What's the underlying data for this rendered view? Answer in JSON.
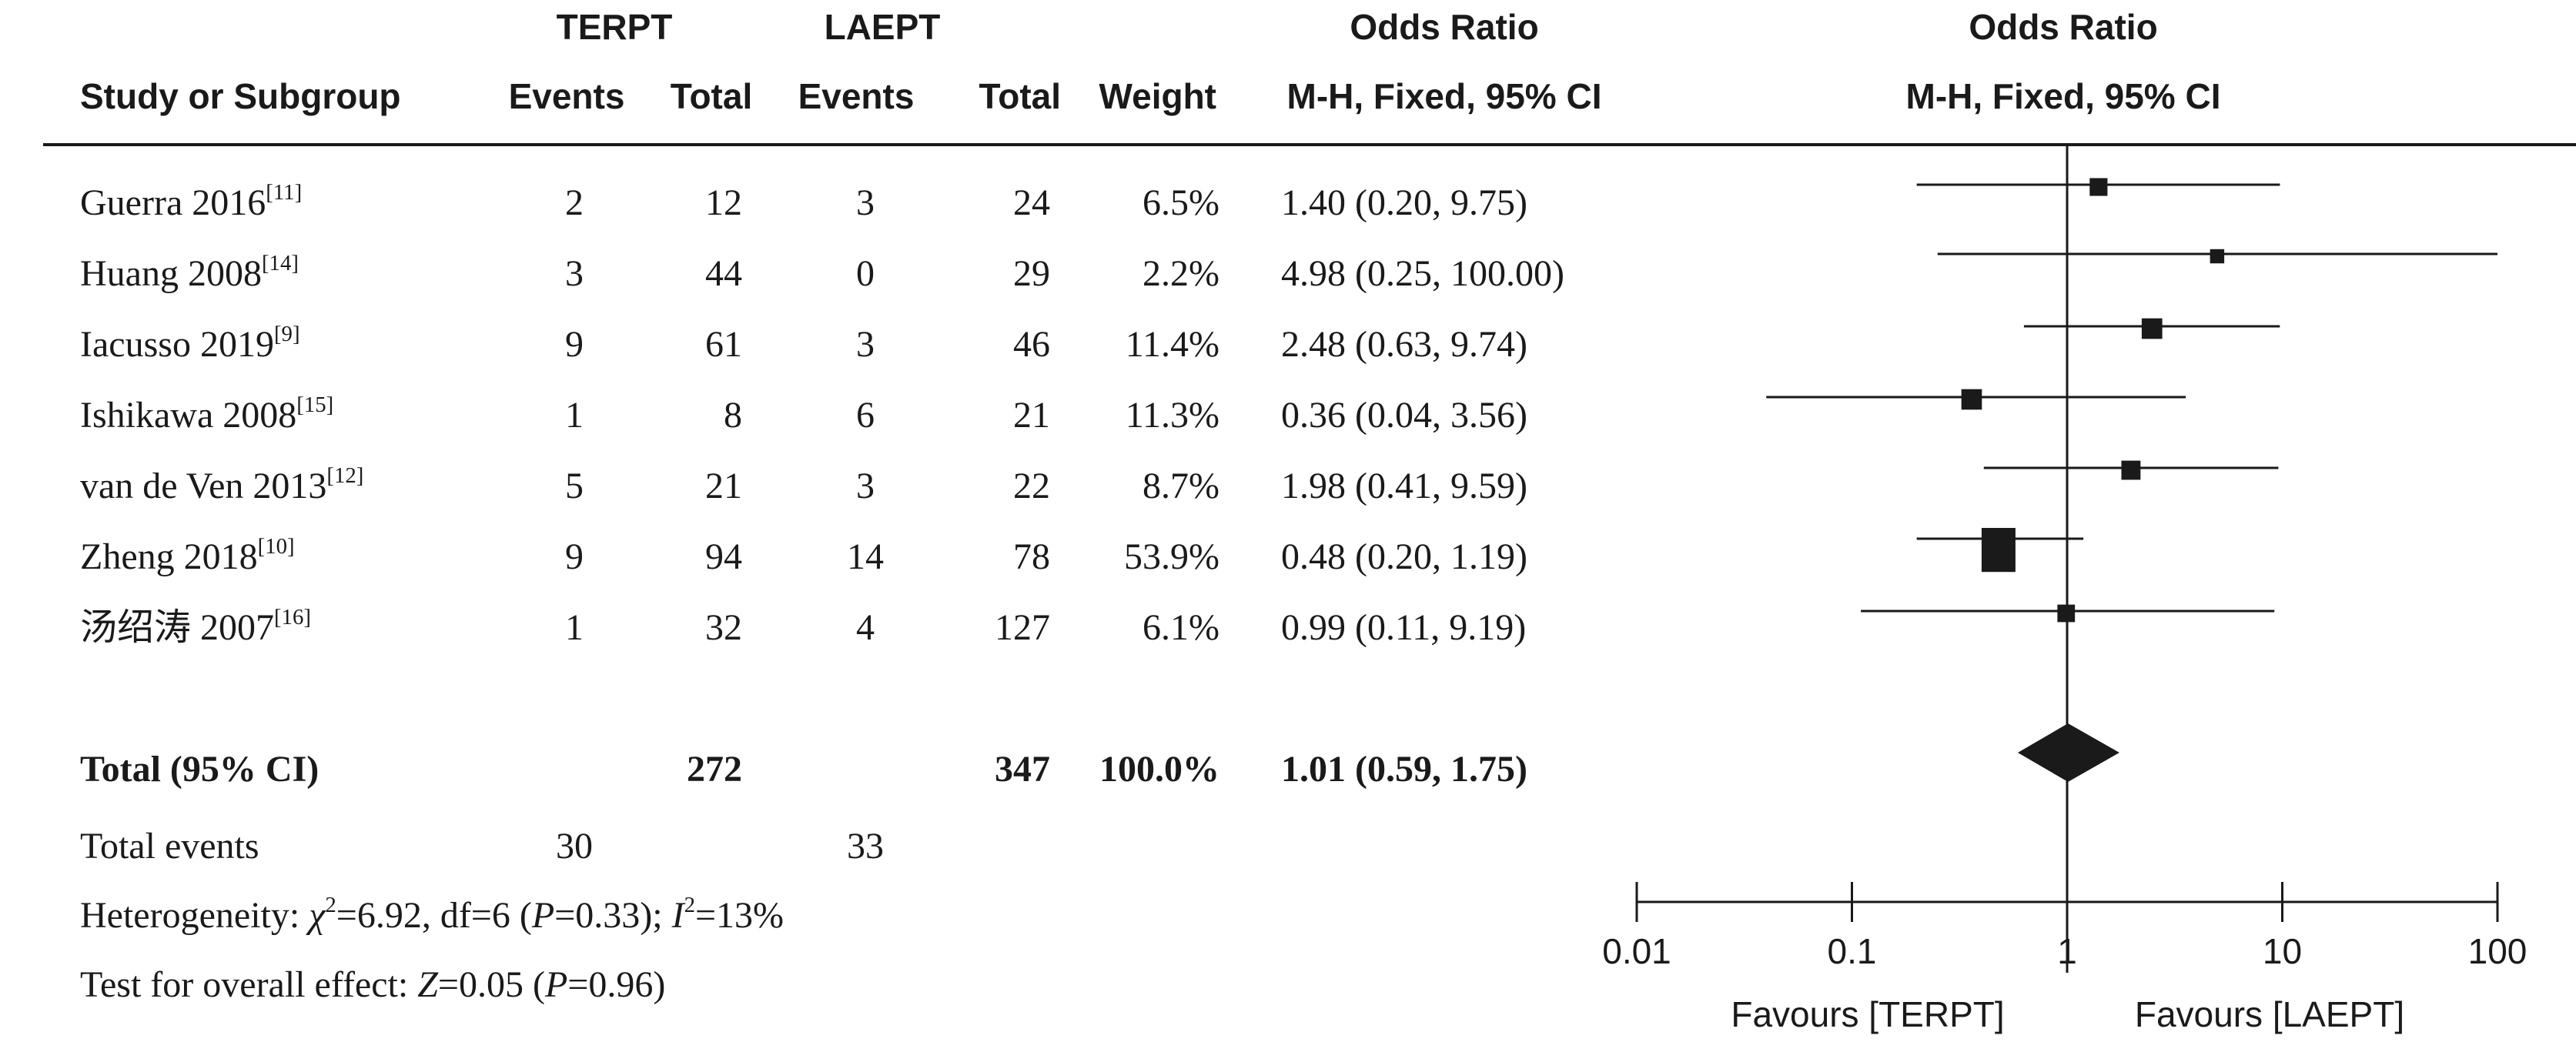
{
  "header": {
    "group1": "TERPT",
    "group2": "LAEPT",
    "or_title_1": "Odds Ratio",
    "or_title_2": "Odds Ratio",
    "study_col": "Study or Subgroup",
    "events_1": "Events",
    "total_1": "Total",
    "events_2": "Events",
    "total_2": "Total",
    "weight": "Weight",
    "method_1": "M-H, Fixed, 95% CI",
    "method_2": "M-H, Fixed, 95% CI"
  },
  "studies": [
    {
      "name": "Guerra 2016",
      "ref": "[11]",
      "e1": "2",
      "t1": "12",
      "e2": "3",
      "t2": "24",
      "weight": "6.5%",
      "ci": "1.40 (0.20, 9.75)"
    },
    {
      "name": "Huang 2008",
      "ref": "[14]",
      "e1": "3",
      "t1": "44",
      "e2": "0",
      "t2": "29",
      "weight": "2.2%",
      "ci": "4.98 (0.25, 100.00)"
    },
    {
      "name": "Iacusso 2019",
      "ref": "[9]",
      "e1": "9",
      "t1": "61",
      "e2": "3",
      "t2": "46",
      "weight": "11.4%",
      "ci": "2.48 (0.63, 9.74)"
    },
    {
      "name": "Ishikawa 2008",
      "ref": "[15]",
      "e1": "1",
      "t1": "8",
      "e2": "6",
      "t2": "21",
      "weight": "11.3%",
      "ci": "0.36 (0.04, 3.56)"
    },
    {
      "name": "van de Ven 2013",
      "ref": "[12]",
      "e1": "5",
      "t1": "21",
      "e2": "3",
      "t2": "22",
      "weight": "8.7%",
      "ci": "1.98 (0.41, 9.59)"
    },
    {
      "name": "Zheng 2018",
      "ref": "[10]",
      "e1": "9",
      "t1": "94",
      "e2": "14",
      "t2": "78",
      "weight": "53.9%",
      "ci": "0.48 (0.20, 1.19)"
    },
    {
      "name": "汤绍涛 2007",
      "ref": "[16]",
      "e1": "1",
      "t1": "32",
      "e2": "4",
      "t2": "127",
      "weight": "6.1%",
      "ci": "0.99 (0.11, 9.19)"
    }
  ],
  "total": {
    "label": "Total (95% CI)",
    "t1": "272",
    "t2": "347",
    "weight": "100.0%",
    "ci": "1.01 (0.59, 1.75)"
  },
  "total_events": {
    "label": "Total events",
    "e1": "30",
    "e2": "33"
  },
  "heterogeneity": {
    "prefix": "Heterogeneity: ",
    "chi_sym": "χ",
    "chi_val": "=6.92, df=6 (",
    "p_sym": "P",
    "p_val": "=0.33); ",
    "i_sym": "I",
    "i_val": "=13%"
  },
  "overall": {
    "prefix": "Test for overall effect: ",
    "z_sym": "Z",
    "z_val": "=0.05 (",
    "p_sym": "P",
    "p_val": "=0.96)"
  },
  "chart_data": {
    "type": "forest",
    "scale": "log",
    "xlim": [
      0.01,
      100
    ],
    "ticks": [
      0.01,
      0.1,
      1,
      10,
      100
    ],
    "tick_labels": [
      "0.01",
      "0.1",
      "1",
      "10",
      "100"
    ],
    "null_value": 1,
    "favours_left": "Favours [TERPT]",
    "favours_right": "Favours [LAEPT]",
    "studies": [
      {
        "or": 1.4,
        "lo": 0.2,
        "hi": 9.75,
        "weight": 6.5
      },
      {
        "or": 4.98,
        "lo": 0.25,
        "hi": 100.0,
        "weight": 2.2
      },
      {
        "or": 2.48,
        "lo": 0.63,
        "hi": 9.74,
        "weight": 11.4
      },
      {
        "or": 0.36,
        "lo": 0.04,
        "hi": 3.56,
        "weight": 11.3
      },
      {
        "or": 1.98,
        "lo": 0.41,
        "hi": 9.59,
        "weight": 8.7
      },
      {
        "or": 0.48,
        "lo": 0.2,
        "hi": 1.19,
        "weight": 53.9
      },
      {
        "or": 0.99,
        "lo": 0.11,
        "hi": 9.19,
        "weight": 6.1
      }
    ],
    "pooled": {
      "or": 1.01,
      "lo": 0.59,
      "hi": 1.75
    }
  }
}
